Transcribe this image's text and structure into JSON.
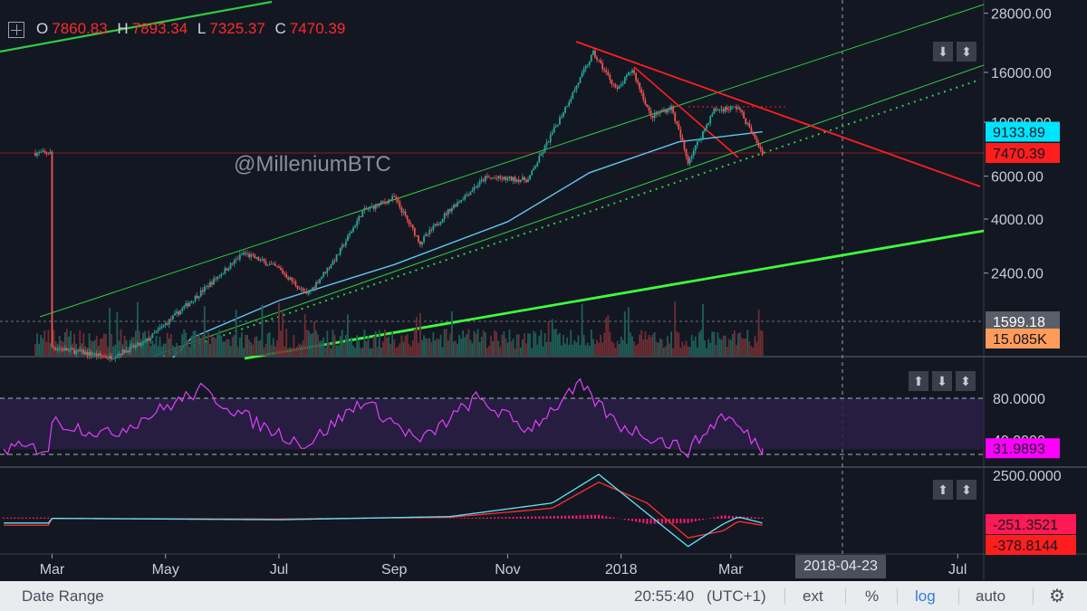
{
  "ohlc": {
    "open_label": "O",
    "open": "7860.83",
    "high_label": "H",
    "high": "7893.34",
    "low_label": "L",
    "low": "7325.37",
    "close_label": "C",
    "close": "7470.39"
  },
  "watermark": "@MilleniumBTC",
  "price_axis": {
    "ticks": [
      "28000.00",
      "16000.00",
      "10000.00",
      "6000.00",
      "4000.00",
      "2400.00"
    ],
    "tags": [
      {
        "text": "9133.89",
        "bg": "#00e5ff",
        "fg": "#131722"
      },
      {
        "text": "7470.39",
        "bg": "#ff1e1e",
        "fg": "#131722"
      },
      {
        "text": "1599.18",
        "bg": "#5a5e68",
        "fg": "#ffffff"
      },
      {
        "text": "15.085K",
        "bg": "#ff9c5a",
        "fg": "#131722"
      }
    ]
  },
  "rsi_axis": {
    "ticks": [
      "80.0000",
      "40.0000"
    ],
    "tag": {
      "text": "31.9893",
      "bg": "#ff00ff",
      "fg": "#131722"
    }
  },
  "macd_axis": {
    "ticks": [
      "2500.0000"
    ],
    "tags": [
      {
        "text": "-251.3521",
        "bg": "#ff1a55",
        "fg": "#131722"
      },
      {
        "text": "-378.8144",
        "bg": "#ff1e1e",
        "fg": "#131722"
      }
    ]
  },
  "x_axis": {
    "labels": [
      "Mar",
      "May",
      "Jul",
      "Sep",
      "Nov",
      "2018",
      "Mar",
      "Jul"
    ],
    "cursor_label": "2018-04-23"
  },
  "buttons": {
    "price_pane": [
      "⬇",
      "⬍"
    ],
    "rsi_pane": [
      "⬆",
      "⬇",
      "⬍"
    ],
    "macd_pane": [
      "⬆",
      "⬍"
    ]
  },
  "footer": {
    "date_range": "Date Range",
    "time": "20:55:40",
    "tz": "(UTC+1)",
    "ext": "ext",
    "percent": "%",
    "log": "log",
    "auto": "auto"
  },
  "colors": {
    "background": "#131722",
    "up": "#26a69a",
    "down": "#ef5350",
    "ma": "#5ec8f0",
    "channel": "#2ecc40",
    "trend_red": "#ff1e1e",
    "rsi": "#e040fb",
    "macd": "#5ee6ff",
    "signal": "#ff3030",
    "hist": "#ff1a6e"
  },
  "chart_data": {
    "type": "candlestick",
    "scale": "log",
    "symbol_ohlc_last": {
      "open": 7860.83,
      "high": 7893.34,
      "low": 7325.37,
      "close": 7470.39
    },
    "x_range": [
      "2017-02-01",
      "2018-07-15"
    ],
    "y_range": [
      1500,
      32000
    ],
    "price_path": [
      {
        "date": "2017-03-01",
        "close": 1190
      },
      {
        "date": "2017-04-01",
        "close": 1080
      },
      {
        "date": "2017-04-20",
        "close": 1250
      },
      {
        "date": "2017-05-15",
        "close": 1850
      },
      {
        "date": "2017-06-12",
        "close": 2900
      },
      {
        "date": "2017-07-01",
        "close": 2500
      },
      {
        "date": "2017-07-16",
        "close": 1950
      },
      {
        "date": "2017-08-01",
        "close": 2800
      },
      {
        "date": "2017-08-15",
        "close": 4300
      },
      {
        "date": "2017-09-01",
        "close": 4900
      },
      {
        "date": "2017-09-15",
        "close": 3200
      },
      {
        "date": "2017-10-01",
        "close": 4400
      },
      {
        "date": "2017-10-20",
        "close": 5900
      },
      {
        "date": "2017-11-12",
        "close": 5800
      },
      {
        "date": "2017-11-28",
        "close": 10000
      },
      {
        "date": "2017-12-17",
        "close": 19200
      },
      {
        "date": "2017-12-30",
        "close": 13500
      },
      {
        "date": "2018-01-07",
        "close": 16500
      },
      {
        "date": "2018-01-17",
        "close": 10500
      },
      {
        "date": "2018-01-28",
        "close": 11500
      },
      {
        "date": "2018-02-06",
        "close": 6900
      },
      {
        "date": "2018-02-20",
        "close": 11200
      },
      {
        "date": "2018-03-05",
        "close": 11500
      },
      {
        "date": "2018-03-18",
        "close": 7470
      }
    ],
    "moving_average": [
      {
        "date": "2017-05-15",
        "value": 1300
      },
      {
        "date": "2017-07-01",
        "value": 1850
      },
      {
        "date": "2017-09-01",
        "value": 2600
      },
      {
        "date": "2017-11-01",
        "value": 3900
      },
      {
        "date": "2017-12-15",
        "value": 6200
      },
      {
        "date": "2018-02-01",
        "value": 8300
      },
      {
        "date": "2018-03-18",
        "value": 9133.89
      }
    ],
    "last_price": 7470.39,
    "ma_last": 9133.89,
    "volume_last": "15.085K",
    "volume_mark": 1599.18,
    "rsi": {
      "name": "RSI",
      "levels": [
        80,
        40
      ],
      "last": 31.9893,
      "path": [
        {
          "date": "2017-03-01",
          "value": 58
        },
        {
          "date": "2017-04-01",
          "value": 45
        },
        {
          "date": "2017-05-20",
          "value": 88
        },
        {
          "date": "2017-06-20",
          "value": 55
        },
        {
          "date": "2017-07-16",
          "value": 35
        },
        {
          "date": "2017-08-15",
          "value": 78
        },
        {
          "date": "2017-09-15",
          "value": 38
        },
        {
          "date": "2017-10-15",
          "value": 80
        },
        {
          "date": "2017-11-12",
          "value": 50
        },
        {
          "date": "2017-12-10",
          "value": 92
        },
        {
          "date": "2017-12-30",
          "value": 55
        },
        {
          "date": "2018-02-06",
          "value": 30
        },
        {
          "date": "2018-02-25",
          "value": 65
        },
        {
          "date": "2018-03-18",
          "value": 31.99
        }
      ]
    },
    "macd": {
      "ticks": [
        2500
      ],
      "macd_last": -251.3521,
      "signal_last": -378.8144,
      "path": [
        {
          "date": "2017-03-01",
          "macd": 20,
          "signal": 10
        },
        {
          "date": "2017-07-01",
          "macd": -60,
          "signal": -20
        },
        {
          "date": "2017-10-01",
          "macd": 120,
          "signal": 80
        },
        {
          "date": "2017-11-25",
          "macd": 900,
          "signal": 600
        },
        {
          "date": "2017-12-20",
          "macd": 2550,
          "signal": 2100
        },
        {
          "date": "2018-01-15",
          "macd": 300,
          "signal": 900
        },
        {
          "date": "2018-02-06",
          "macd": -1600,
          "signal": -1100
        },
        {
          "date": "2018-02-25",
          "macd": -300,
          "signal": -700
        },
        {
          "date": "2018-03-05",
          "macd": 100,
          "signal": -150
        },
        {
          "date": "2018-03-18",
          "macd": -251.35,
          "signal": -378.81
        }
      ]
    }
  }
}
